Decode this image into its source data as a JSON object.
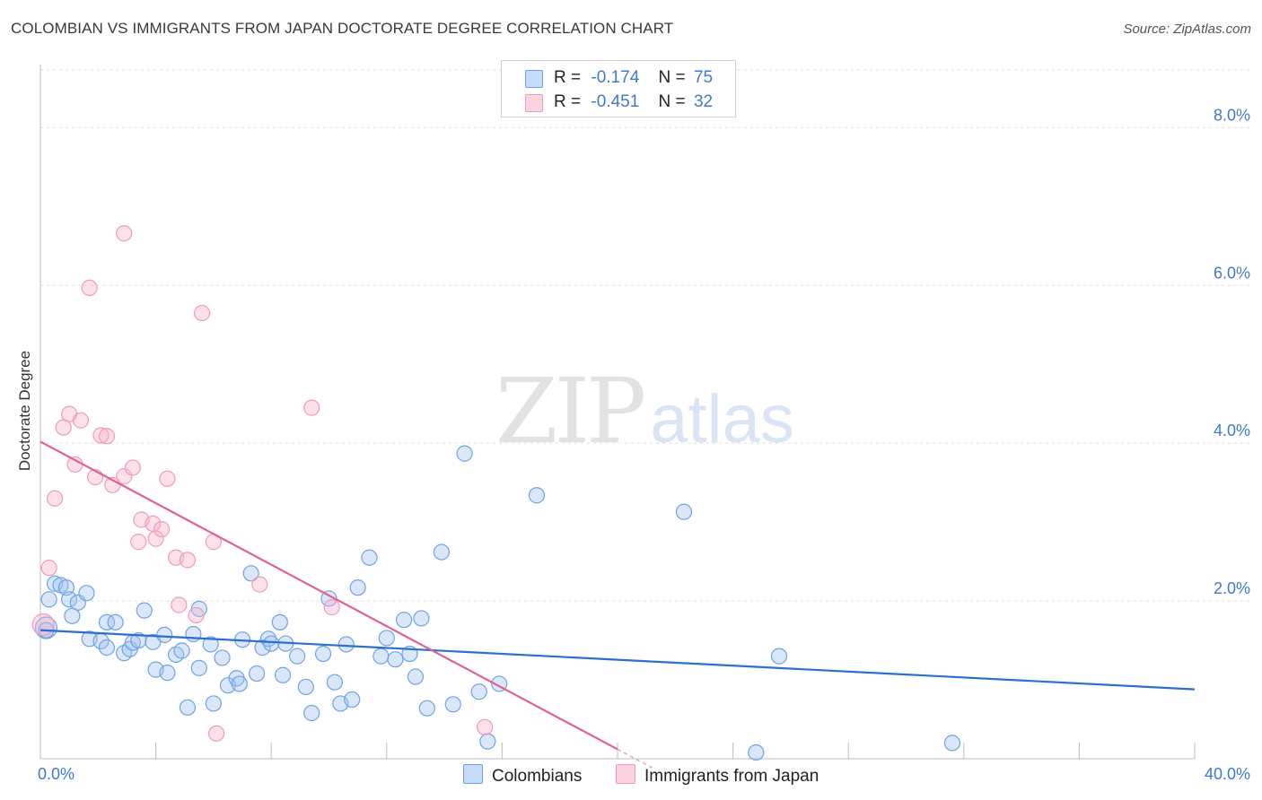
{
  "title": "COLOMBIAN VS IMMIGRANTS FROM JAPAN DOCTORATE DEGREE CORRELATION CHART",
  "source": "Source: ZipAtlas.com",
  "watermark": {
    "zip": "ZIP",
    "atlas": "atlas"
  },
  "legend": {
    "r_label": "R =",
    "n_label": "N =",
    "rows": [
      {
        "r": "-0.174",
        "n": "75"
      },
      {
        "r": "-0.451",
        "n": "32"
      }
    ]
  },
  "bottom_legend": [
    "Colombians",
    "Immigrants from Japan"
  ],
  "chart_data": {
    "type": "scatter",
    "title": "COLOMBIAN VS IMMIGRANTS FROM JAPAN DOCTORATE DEGREE CORRELATION CHART",
    "xlabel": "",
    "ylabel": "Doctorate Degree",
    "xlim": [
      0,
      40
    ],
    "ylim": [
      0,
      8.8
    ],
    "x_tick_labels": [
      "0.0%",
      "40.0%"
    ],
    "y_ticks": [
      2,
      4,
      6,
      8
    ],
    "y_tick_labels": [
      "2.0%",
      "4.0%",
      "6.0%",
      "8.0%"
    ],
    "grid": true,
    "legend_position": "top-center",
    "colors": {
      "Colombians": "#6fa3e6",
      "Immigrants from Japan": "#f19bb7",
      "blue_line": "#2b6fd0",
      "pink_line": "#e0628f"
    },
    "series": [
      {
        "name": "Colombians",
        "R": -0.174,
        "N": 75,
        "trend": {
          "x": [
            0,
            40
          ],
          "y": [
            1.63,
            0.88
          ]
        },
        "points": [
          [
            0.2,
            1.66
          ],
          [
            0.3,
            2.02
          ],
          [
            0.5,
            2.22
          ],
          [
            0.7,
            2.2
          ],
          [
            0.9,
            2.17
          ],
          [
            1.0,
            2.02
          ],
          [
            1.3,
            1.98
          ],
          [
            1.1,
            1.81
          ],
          [
            1.6,
            2.1
          ],
          [
            1.7,
            1.52
          ],
          [
            2.1,
            1.49
          ],
          [
            2.3,
            1.73
          ],
          [
            2.3,
            1.41
          ],
          [
            2.6,
            1.73
          ],
          [
            2.9,
            1.34
          ],
          [
            3.1,
            1.39
          ],
          [
            3.2,
            1.47
          ],
          [
            3.4,
            1.5
          ],
          [
            3.6,
            1.88
          ],
          [
            3.9,
            1.48
          ],
          [
            4.0,
            1.13
          ],
          [
            4.3,
            1.57
          ],
          [
            4.4,
            1.09
          ],
          [
            4.7,
            1.32
          ],
          [
            4.9,
            1.37
          ],
          [
            5.1,
            0.65
          ],
          [
            5.3,
            1.58
          ],
          [
            5.5,
            1.9
          ],
          [
            5.5,
            1.15
          ],
          [
            5.9,
            1.45
          ],
          [
            6.0,
            0.7
          ],
          [
            6.3,
            1.28
          ],
          [
            6.5,
            0.93
          ],
          [
            6.8,
            1.02
          ],
          [
            6.9,
            0.95
          ],
          [
            7.0,
            1.51
          ],
          [
            7.3,
            2.35
          ],
          [
            7.5,
            1.08
          ],
          [
            7.7,
            1.41
          ],
          [
            7.9,
            1.52
          ],
          [
            8.0,
            1.46
          ],
          [
            8.3,
            1.73
          ],
          [
            8.4,
            1.06
          ],
          [
            8.5,
            1.46
          ],
          [
            8.9,
            1.3
          ],
          [
            9.2,
            0.91
          ],
          [
            9.4,
            0.58
          ],
          [
            9.8,
            1.33
          ],
          [
            10.0,
            2.03
          ],
          [
            10.2,
            0.97
          ],
          [
            10.4,
            0.7
          ],
          [
            10.6,
            1.45
          ],
          [
            10.8,
            0.75
          ],
          [
            11.0,
            2.17
          ],
          [
            11.4,
            2.55
          ],
          [
            11.8,
            1.3
          ],
          [
            12.0,
            1.53
          ],
          [
            12.3,
            1.26
          ],
          [
            12.6,
            1.76
          ],
          [
            12.8,
            1.33
          ],
          [
            13.0,
            1.04
          ],
          [
            13.2,
            1.78
          ],
          [
            13.4,
            0.64
          ],
          [
            13.9,
            2.62
          ],
          [
            14.3,
            0.69
          ],
          [
            14.7,
            3.87
          ],
          [
            15.2,
            0.85
          ],
          [
            15.5,
            0.22
          ],
          [
            15.9,
            0.95
          ],
          [
            17.2,
            3.34
          ],
          [
            22.3,
            3.13
          ],
          [
            24.8,
            0.08
          ],
          [
            25.6,
            1.3
          ],
          [
            31.6,
            0.2
          ],
          [
            0.2,
            1.63
          ]
        ]
      },
      {
        "name": "Immigrants from Japan",
        "R": -0.451,
        "N": 32,
        "trend": {
          "x": [
            0,
            20
          ],
          "y": [
            4.02,
            0.12
          ]
        },
        "points": [
          [
            0.1,
            1.7
          ],
          [
            0.3,
            2.42
          ],
          [
            0.5,
            3.3
          ],
          [
            0.8,
            4.2
          ],
          [
            1.0,
            4.37
          ],
          [
            1.2,
            3.73
          ],
          [
            1.4,
            4.29
          ],
          [
            1.7,
            5.97
          ],
          [
            1.9,
            3.57
          ],
          [
            2.1,
            4.1
          ],
          [
            2.3,
            4.09
          ],
          [
            2.5,
            3.47
          ],
          [
            2.9,
            6.66
          ],
          [
            2.9,
            3.58
          ],
          [
            3.2,
            3.69
          ],
          [
            3.4,
            2.75
          ],
          [
            3.5,
            3.03
          ],
          [
            3.9,
            2.98
          ],
          [
            4.0,
            2.79
          ],
          [
            4.2,
            2.91
          ],
          [
            4.4,
            3.55
          ],
          [
            4.7,
            2.55
          ],
          [
            4.8,
            1.95
          ],
          [
            5.1,
            2.52
          ],
          [
            5.4,
            1.82
          ],
          [
            5.6,
            5.65
          ],
          [
            6.0,
            2.75
          ],
          [
            6.1,
            0.32
          ],
          [
            7.6,
            2.21
          ],
          [
            9.4,
            4.45
          ],
          [
            10.1,
            1.92
          ],
          [
            15.4,
            0.4
          ]
        ]
      }
    ]
  }
}
